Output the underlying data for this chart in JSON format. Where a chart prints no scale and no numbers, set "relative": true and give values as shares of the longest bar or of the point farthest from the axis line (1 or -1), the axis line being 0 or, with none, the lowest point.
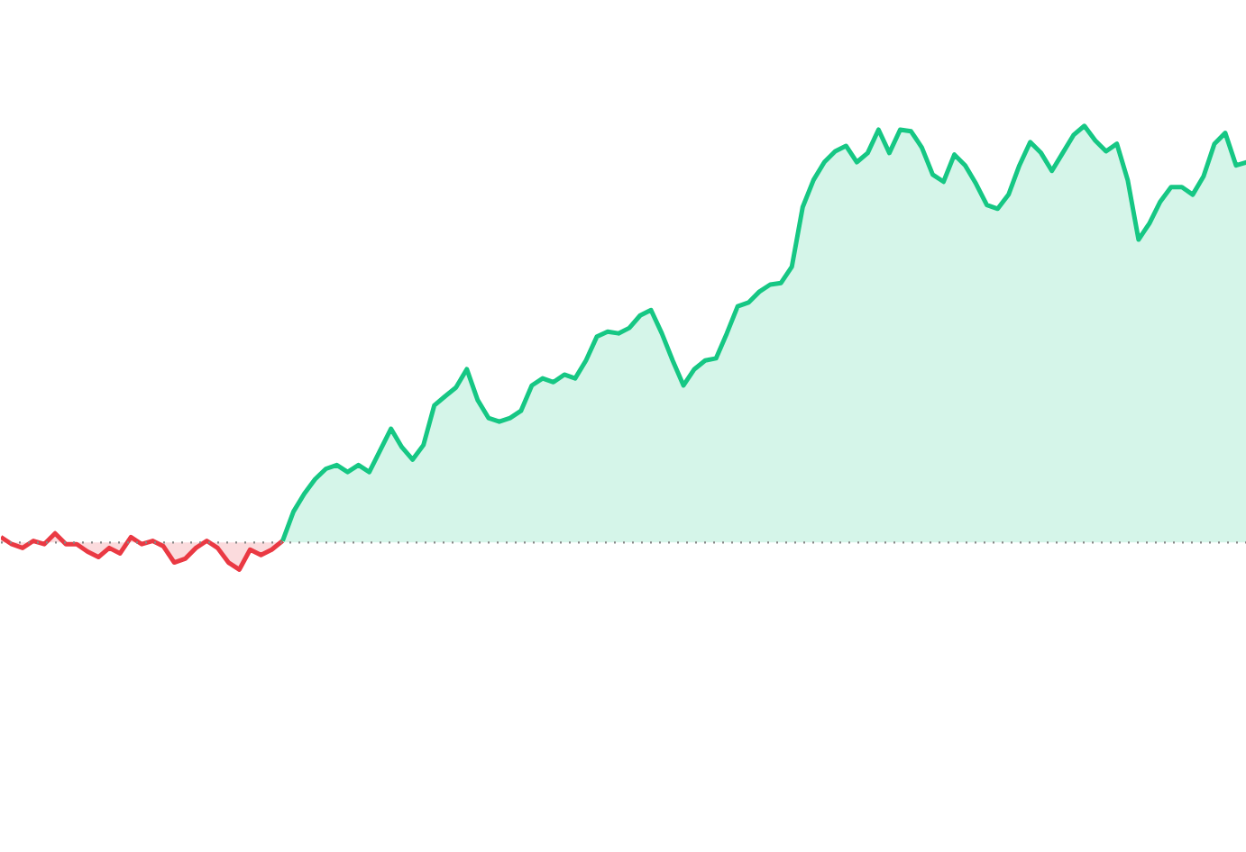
{
  "chart_data": {
    "type": "area",
    "relative": true,
    "categories": [
      null,
      null,
      null,
      null,
      null,
      null,
      null,
      null,
      null,
      null,
      null,
      null,
      null,
      null,
      null,
      null,
      null,
      null,
      null,
      null,
      null,
      null,
      null,
      null,
      null,
      null,
      null,
      null,
      null,
      null,
      null,
      null,
      null,
      null,
      null,
      null,
      null,
      null,
      null,
      null,
      null,
      null,
      null,
      null,
      null,
      null,
      null,
      null,
      null,
      null,
      null,
      null,
      null,
      null,
      null,
      null,
      null,
      null,
      null,
      null,
      null,
      null,
      null,
      null,
      null,
      null,
      null,
      null,
      null,
      null,
      null,
      null,
      null,
      null,
      null,
      null,
      null,
      null,
      null,
      null,
      null,
      null,
      null,
      null,
      null,
      null,
      null,
      null,
      null,
      null,
      null,
      null,
      null,
      null,
      null,
      null,
      null,
      null,
      null,
      null,
      null,
      null,
      null,
      null,
      null,
      null,
      null,
      null,
      null,
      null,
      null,
      null,
      null,
      null,
      null,
      null
    ],
    "series": [
      {
        "color": "#ea3943",
        "values": [
          0.013,
          -0.004,
          -0.013,
          0.004,
          -0.004,
          0.022,
          -0.004,
          -0.004,
          -0.022,
          -0.035,
          -0.013,
          -0.026,
          0.013,
          -0.004,
          0.004,
          -0.009,
          -0.048,
          -0.039,
          -0.013,
          0.004,
          -0.013,
          -0.048,
          -0.065,
          -0.017,
          -0.03,
          -0.017,
          0.004,
          null,
          null,
          null,
          null,
          null,
          null,
          null,
          null,
          null,
          null,
          null,
          null,
          null,
          null,
          null,
          null,
          null,
          null,
          null,
          null,
          null,
          null,
          null,
          null,
          null,
          null,
          null,
          null,
          null,
          null,
          null,
          null,
          null,
          null,
          null,
          null,
          null,
          null,
          null,
          null,
          null,
          null,
          null,
          null,
          null,
          null,
          null,
          null,
          null,
          null,
          null,
          null,
          null,
          null,
          null,
          null,
          null,
          null,
          null,
          null,
          null,
          null,
          null,
          null,
          null,
          null,
          null,
          null,
          null,
          null,
          null,
          null,
          null,
          null,
          null,
          null,
          null,
          null,
          null,
          null,
          null,
          null,
          null,
          null,
          null,
          null,
          null,
          null,
          null
        ]
      },
      {
        "color": "#16c784",
        "values": [
          null,
          null,
          null,
          null,
          null,
          null,
          null,
          null,
          null,
          null,
          null,
          null,
          null,
          null,
          null,
          null,
          null,
          null,
          null,
          null,
          null,
          null,
          null,
          null,
          null,
          null,
          0.004,
          0.074,
          0.117,
          0.152,
          0.177,
          0.186,
          0.169,
          0.186,
          0.169,
          0.221,
          0.273,
          0.229,
          0.199,
          0.234,
          0.329,
          0.351,
          0.372,
          0.416,
          0.342,
          0.299,
          0.29,
          0.299,
          0.316,
          0.377,
          0.394,
          0.385,
          0.403,
          0.394,
          0.437,
          0.494,
          0.506,
          0.502,
          0.515,
          0.545,
          0.558,
          0.502,
          0.437,
          0.377,
          0.416,
          0.437,
          0.442,
          0.502,
          0.567,
          0.576,
          0.602,
          0.619,
          0.623,
          0.662,
          0.805,
          0.87,
          0.913,
          0.939,
          0.952,
          0.913,
          0.935,
          0.991,
          0.935,
          0.991,
          0.987,
          0.948,
          0.883,
          0.866,
          0.931,
          0.905,
          0.861,
          0.81,
          0.801,
          0.835,
          0.905,
          0.961,
          0.935,
          0.892,
          0.935,
          0.978,
          1,
          0.965,
          0.939,
          0.957,
          0.87,
          0.727,
          0.766,
          0.818,
          0.853,
          0.853,
          0.835,
          0.879,
          0.957,
          0.983,
          0.905,
          0.913
        ]
      }
    ],
    "ref_lines": [
      {
        "axis": "y",
        "value": 0,
        "color": "#888888",
        "line_style": "dotted"
      }
    ]
  }
}
